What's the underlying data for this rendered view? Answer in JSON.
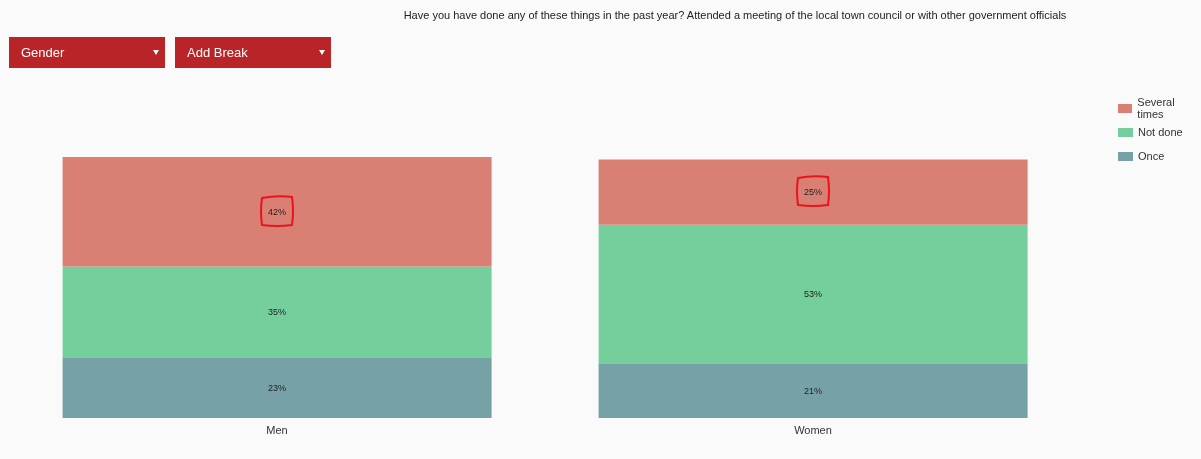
{
  "chart_data": {
    "type": "bar",
    "title": "Have you have done any of these things in the past year? Attended a meeting of the local town council or with other government officials",
    "categories": [
      "Men",
      "Women"
    ],
    "stacked": true,
    "data_labels": true,
    "legend": "top right",
    "annotations": [
      "Gender",
      "Add Break"
    ],
    "series": [
      {
        "name": "Once",
        "color": "#76a2a7",
        "values": [
          23,
          21
        ],
        "value_labels": [
          "23%",
          "21%"
        ]
      },
      {
        "name": "Not done",
        "color": "#74cf9c",
        "values": [
          35,
          53
        ],
        "value_labels": [
          "35%",
          "53%"
        ]
      },
      {
        "name": "Several times",
        "color": "#d97f74",
        "values": [
          42,
          25
        ],
        "value_labels": [
          "42%",
          "25%"
        ]
      }
    ]
  }
}
